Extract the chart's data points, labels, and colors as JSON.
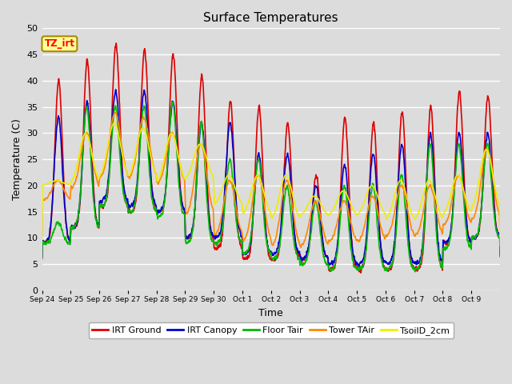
{
  "title": "Surface Temperatures",
  "xlabel": "Time",
  "ylabel": "Temperature (C)",
  "ylim": [
    0,
    50
  ],
  "yticks": [
    0,
    5,
    10,
    15,
    20,
    25,
    30,
    35,
    40,
    45,
    50
  ],
  "background_color": "#dcdcdc",
  "plot_bg_color": "#dcdcdc",
  "grid_color": "#ffffff",
  "annotation_text": "TZ_irt",
  "annotation_box_color": "#ffff99",
  "annotation_border_color": "#aa8800",
  "series": [
    {
      "name": "IRT Ground",
      "color": "#dd0000",
      "lw": 1.2
    },
    {
      "name": "IRT Canopy",
      "color": "#0000cc",
      "lw": 1.2
    },
    {
      "name": "Floor Tair",
      "color": "#00bb00",
      "lw": 1.2
    },
    {
      "name": "Tower TAir",
      "color": "#ff8800",
      "lw": 1.2
    },
    {
      "name": "TsoilD_2cm",
      "color": "#eeee00",
      "lw": 1.2
    }
  ],
  "xtick_labels": [
    "Sep 24",
    "Sep 25",
    "Sep 26",
    "Sep 27",
    "Sep 28",
    "Sep 29",
    "Sep 30",
    "Oct 1",
    "Oct 2",
    "Oct 3",
    "Oct 4",
    "Oct 5",
    "Oct 6",
    "Oct 7",
    "Oct 8",
    "Oct 9"
  ],
  "n_days": 16,
  "figsize": [
    6.4,
    4.8
  ],
  "dpi": 100
}
